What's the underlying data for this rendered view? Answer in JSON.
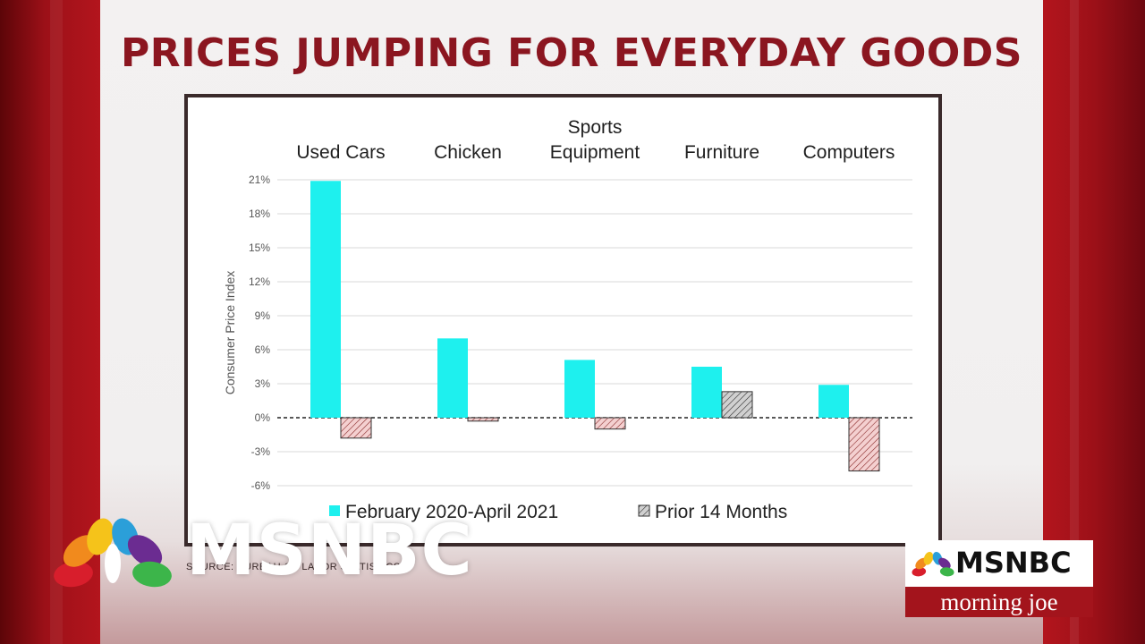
{
  "headline": "PRICES JUMPING FOR EVERYDAY GOODS",
  "colors": {
    "series_1": "#1ef0ee",
    "series_2_fill": "#f4d0d0",
    "series_2_alt_fill": "#d0d0d0",
    "headline": "#8b1620",
    "brand_red": "#a3141c"
  },
  "chart_data": {
    "type": "bar",
    "categories": [
      "Used Cars",
      "Chicken",
      "Sports Equipment",
      "Furniture",
      "Computers"
    ],
    "series": [
      {
        "name": "February 2020-April 2021",
        "values": [
          20.9,
          7.0,
          5.1,
          4.5,
          2.9
        ]
      },
      {
        "name": "Prior 14 Months",
        "values": [
          -1.8,
          -0.3,
          -1.0,
          2.3,
          -4.7
        ]
      }
    ],
    "ylabel": "Consumer Price Index",
    "ylim": [
      -6,
      21
    ],
    "yticks": [
      "21%",
      "18%",
      "15%",
      "12%",
      "9%",
      "6%",
      "3%",
      "0%",
      "-3%",
      "-6%"
    ],
    "grid": true,
    "legend_position": "bottom"
  },
  "logo": {
    "brand": "MSNBC",
    "source_text": "SOURCE: BUREAU OF LABOR STATISTICS"
  },
  "badge": {
    "brand": "MSNBC",
    "show": "morning joe"
  }
}
